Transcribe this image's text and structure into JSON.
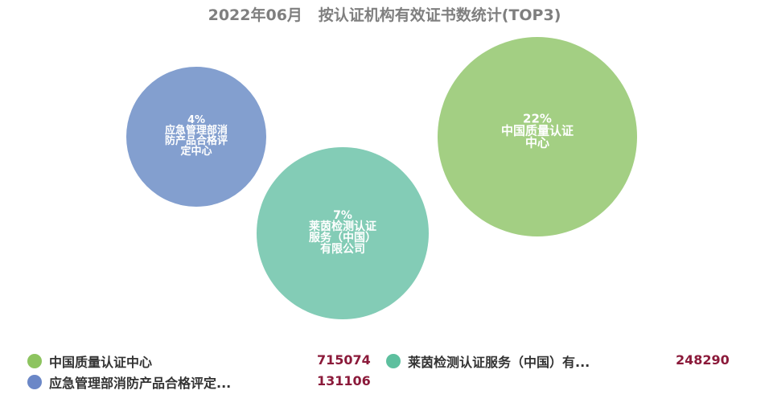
{
  "chart_data": {
    "type": "bubble",
    "title": "2022年06月   按认证机构有效证书数统计(TOP3)",
    "series": [
      {
        "name": "中国质量认证中心",
        "legend_label": "中国质量认证中心",
        "value": 715074,
        "percent": "22%",
        "label_lines": [
          "22%",
          "中国质量认证",
          "中心"
        ],
        "color": "#a3cf83"
      },
      {
        "name": "莱茵检测认证服务（中国）有限公司",
        "legend_label": "莱茵检测认证服务（中国）有...",
        "value": 248290,
        "percent": "7%",
        "label_lines": [
          "7%",
          "莱茵检测认证",
          "服务（中国）",
          "有限公司"
        ],
        "color": "#83ccb6"
      },
      {
        "name": "应急管理部消防产品合格评定中心",
        "legend_label": "应急管理部消防产品合格评定...",
        "value": 131106,
        "percent": "4%",
        "label_lines": [
          "4%",
          "应急管理部消",
          "防产品合格评",
          "定中心"
        ],
        "color": "#839fcf"
      }
    ],
    "legend": {
      "position": "bottom",
      "colors": [
        "#8dc45f",
        "#5dbf9e",
        "#6b87c7"
      ]
    }
  }
}
